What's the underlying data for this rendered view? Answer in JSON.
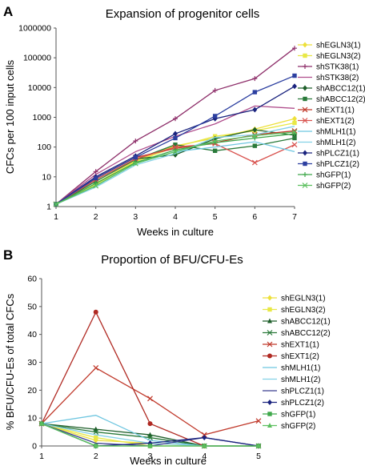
{
  "panels": [
    {
      "letter": "A"
    },
    {
      "letter": "B"
    }
  ],
  "chart_data": [
    {
      "type": "line",
      "title": "Expansion of progenitor cells",
      "xlabel": "Weeks in culture",
      "ylabel": "CFCs per 100 input cells",
      "yscale": "log",
      "ylim": [
        1,
        1000000
      ],
      "xlim": [
        1,
        7
      ],
      "x": [
        1,
        2,
        3,
        4,
        5,
        6,
        7
      ],
      "yticks": [
        "1",
        "10",
        "100",
        "1000",
        "10000",
        "100000",
        "1000000"
      ],
      "legend_position": "right",
      "grid": false,
      "series": [
        {
          "name": "shEGLN3(1)",
          "color": "#ede03a",
          "marker": "diamond",
          "values": [
            1.2,
            6,
            35,
            110,
            200,
            400,
            900
          ]
        },
        {
          "name": "shEGLN3(2)",
          "color": "#e8e845",
          "marker": "square",
          "values": [
            1.2,
            5.5,
            32,
            100,
            230,
            350,
            650
          ]
        },
        {
          "name": "shSTK38(1)",
          "color": "#8e2f6a",
          "marker": "plus",
          "values": [
            1.2,
            15,
            160,
            900,
            8000,
            20000,
            210000
          ]
        },
        {
          "name": "shSTK38(2)",
          "color": "#b04e8c",
          "marker": "line",
          "values": [
            1.2,
            12,
            70,
            230,
            600,
            2400,
            2000
          ]
        },
        {
          "name": "shABCC12(1)",
          "color": "#1e5e2a",
          "marker": "diamond",
          "values": [
            1.2,
            8,
            40,
            55,
            190,
            380,
            250
          ]
        },
        {
          "name": "shABCC12(2)",
          "color": "#2a7a3a",
          "marker": "square",
          "values": [
            1.2,
            7,
            38,
            120,
            75,
            110,
            200
          ]
        },
        {
          "name": "shEXT1(1)",
          "color": "#c0392b",
          "marker": "x",
          "values": [
            1.2,
            9,
            45,
            90,
            140,
            260,
            350
          ]
        },
        {
          "name": "shEXT1(2)",
          "color": "#d9534f",
          "marker": "x",
          "values": [
            1.2,
            8,
            40,
            100,
            130,
            30,
            120
          ]
        },
        {
          "name": "shMLH1(1)",
          "color": "#6ec6e0",
          "marker": "line",
          "values": [
            1.2,
            5,
            28,
            70,
            100,
            150,
            70
          ]
        },
        {
          "name": "shMLH1(2)",
          "color": "#84d1e6",
          "marker": "line",
          "values": [
            1.2,
            4.5,
            25,
            60,
            210,
            260,
            500
          ]
        },
        {
          "name": "shPLCZ1(1)",
          "color": "#1a237e",
          "marker": "diamond",
          "values": [
            1.2,
            10,
            50,
            280,
            900,
            1800,
            11000
          ]
        },
        {
          "name": "shPLCZ1(2)",
          "color": "#2c3fa0",
          "marker": "square",
          "values": [
            1.2,
            9,
            45,
            200,
            1100,
            7000,
            25000
          ]
        },
        {
          "name": "shGFP(1)",
          "color": "#3fa84a",
          "marker": "plus",
          "values": [
            1.2,
            6,
            30,
            80,
            140,
            200,
            280
          ]
        },
        {
          "name": "shGFP(2)",
          "color": "#5bbf5e",
          "marker": "x",
          "values": [
            1.2,
            5,
            28,
            70,
            160,
            240,
            320
          ]
        }
      ]
    },
    {
      "type": "line",
      "title": "Proportion of BFU/CFU-Es",
      "xlabel": "Weeks in culture",
      "ylabel": "% BFU/CFU-Es of total CFCs",
      "ylim": [
        0,
        60
      ],
      "xlim": [
        1,
        5
      ],
      "x": [
        1,
        2,
        3,
        4,
        5
      ],
      "yticks": [
        "0",
        "10",
        "20",
        "30",
        "40",
        "50",
        "60"
      ],
      "legend_position": "right",
      "grid": false,
      "series": [
        {
          "name": "shEGLN3(1)",
          "color": "#ede03a",
          "marker": "diamond",
          "values": [
            8,
            2,
            1,
            0,
            0
          ]
        },
        {
          "name": "shEGLN3(2)",
          "color": "#e8e845",
          "marker": "square",
          "values": [
            8,
            3,
            0,
            0,
            0
          ]
        },
        {
          "name": "shABCC12(1)",
          "color": "#1e5e2a",
          "marker": "triangle",
          "values": [
            8,
            6,
            4,
            0,
            0
          ]
        },
        {
          "name": "shABCC12(2)",
          "color": "#2a7a3a",
          "marker": "x",
          "values": [
            8,
            5,
            3,
            0,
            0
          ]
        },
        {
          "name": "shEXT1(1)",
          "color": "#c0392b",
          "marker": "x",
          "values": [
            8,
            28,
            17,
            4,
            9
          ]
        },
        {
          "name": "shEXT1(2)",
          "color": "#b02a23",
          "marker": "circle",
          "values": [
            8,
            48,
            8,
            0,
            0
          ]
        },
        {
          "name": "shMLH1(1)",
          "color": "#6ec6e0",
          "marker": "line",
          "values": [
            8,
            11,
            2,
            0,
            0
          ]
        },
        {
          "name": "shMLH1(2)",
          "color": "#84d1e6",
          "marker": "line",
          "values": [
            8,
            4,
            1,
            0,
            0
          ]
        },
        {
          "name": "shPLCZ1(1)",
          "color": "#3b3f8f",
          "marker": "line",
          "values": [
            8,
            1,
            0,
            3,
            0
          ]
        },
        {
          "name": "shPLCZ1(2)",
          "color": "#1a237e",
          "marker": "diamond",
          "values": [
            8,
            0,
            1,
            3,
            0
          ]
        },
        {
          "name": "shGFP(1)",
          "color": "#3fa84a",
          "marker": "square",
          "values": [
            8,
            0,
            0,
            0,
            0
          ]
        },
        {
          "name": "shGFP(2)",
          "color": "#5bbf5e",
          "marker": "triangle",
          "values": [
            8,
            0,
            0,
            0,
            0
          ]
        }
      ]
    }
  ]
}
